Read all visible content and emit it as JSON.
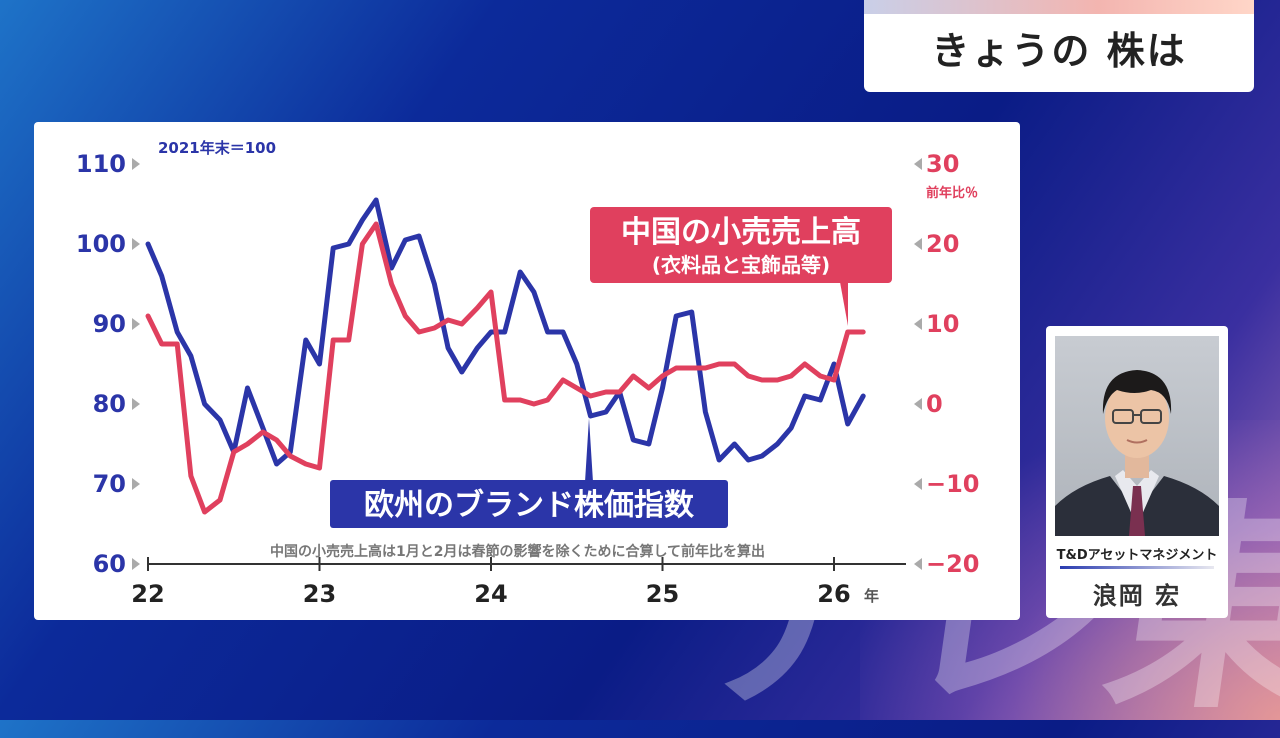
{
  "header": {
    "title": "きょうの 株は"
  },
  "speaker": {
    "company": "T&Dアセットマネジメント",
    "name": "浪岡 宏"
  },
  "watermark": "テレ東",
  "chart_data": {
    "type": "line",
    "base_note": "2021年末＝100",
    "footnote": "中国の小売売上高は1月と2月は春節の影響を除くために合算して前年比を算出",
    "x_axis": {
      "ticks": [
        "22",
        "23",
        "24",
        "25",
        "26"
      ],
      "unit": "年",
      "range": [
        2022,
        2026.9
      ]
    },
    "y_left": {
      "ticks": [
        "110",
        "100",
        "90",
        "80",
        "70",
        "60"
      ],
      "range": [
        60,
        110
      ]
    },
    "y_right": {
      "ticks": [
        "30",
        "20",
        "10",
        "0",
        "−10",
        "−20"
      ],
      "range": [
        -20,
        30
      ],
      "unit": "前年比％"
    },
    "series": [
      {
        "name": "欧州のブランド株価指数",
        "axis": "left",
        "color": "#2b35a8",
        "points": [
          [
            2022.0,
            100
          ],
          [
            2022.08,
            96
          ],
          [
            2022.17,
            89
          ],
          [
            2022.25,
            86
          ],
          [
            2022.33,
            80
          ],
          [
            2022.42,
            78
          ],
          [
            2022.5,
            74
          ],
          [
            2022.58,
            82
          ],
          [
            2022.67,
            77
          ],
          [
            2022.75,
            72.5
          ],
          [
            2022.83,
            74
          ],
          [
            2022.92,
            88
          ],
          [
            2023.0,
            85
          ],
          [
            2023.08,
            99.5
          ],
          [
            2023.17,
            100
          ],
          [
            2023.25,
            103
          ],
          [
            2023.33,
            105.5
          ],
          [
            2023.42,
            97
          ],
          [
            2023.5,
            100.5
          ],
          [
            2023.58,
            101
          ],
          [
            2023.67,
            95
          ],
          [
            2023.75,
            87
          ],
          [
            2023.83,
            84
          ],
          [
            2023.92,
            87
          ],
          [
            2024.0,
            89
          ],
          [
            2024.08,
            89
          ],
          [
            2024.17,
            96.5
          ],
          [
            2024.25,
            94
          ],
          [
            2024.33,
            89
          ],
          [
            2024.42,
            89
          ],
          [
            2024.5,
            85
          ],
          [
            2024.58,
            78.5
          ],
          [
            2024.67,
            79
          ],
          [
            2024.75,
            81.5
          ],
          [
            2024.83,
            75.5
          ],
          [
            2024.92,
            75
          ],
          [
            2025.0,
            82
          ],
          [
            2025.08,
            91
          ],
          [
            2025.17,
            91.5
          ],
          [
            2025.25,
            79
          ],
          [
            2025.33,
            73
          ],
          [
            2025.42,
            75
          ],
          [
            2025.5,
            73
          ],
          [
            2025.58,
            73.5
          ],
          [
            2025.67,
            75
          ],
          [
            2025.75,
            77
          ],
          [
            2025.83,
            81
          ],
          [
            2025.92,
            80.5
          ],
          [
            2026.0,
            85
          ],
          [
            2026.08,
            77.5
          ],
          [
            2026.17,
            81
          ]
        ]
      },
      {
        "name": "中国の小売売上高",
        "sub_label": "(衣料品と宝飾品等)",
        "axis": "right",
        "color": "#e0405e",
        "points": [
          [
            2022.0,
            11
          ],
          [
            2022.08,
            7.5
          ],
          [
            2022.17,
            7.5
          ],
          [
            2022.25,
            -9
          ],
          [
            2022.33,
            -13.5
          ],
          [
            2022.42,
            -12
          ],
          [
            2022.5,
            -6
          ],
          [
            2022.58,
            -5
          ],
          [
            2022.67,
            -3.5
          ],
          [
            2022.75,
            -4.5
          ],
          [
            2022.83,
            -6.5
          ],
          [
            2022.92,
            -7.5
          ],
          [
            2023.0,
            -8
          ],
          [
            2023.08,
            8
          ],
          [
            2023.17,
            8
          ],
          [
            2023.25,
            20
          ],
          [
            2023.33,
            22.5
          ],
          [
            2023.42,
            15
          ],
          [
            2023.5,
            11
          ],
          [
            2023.58,
            9
          ],
          [
            2023.67,
            9.5
          ],
          [
            2023.75,
            10.5
          ],
          [
            2023.83,
            10
          ],
          [
            2023.92,
            12
          ],
          [
            2024.0,
            14
          ],
          [
            2024.08,
            0.5
          ],
          [
            2024.17,
            0.5
          ],
          [
            2024.25,
            0
          ],
          [
            2024.33,
            0.5
          ],
          [
            2024.42,
            3
          ],
          [
            2024.5,
            2
          ],
          [
            2024.58,
            1
          ],
          [
            2024.67,
            1.5
          ],
          [
            2024.75,
            1.5
          ],
          [
            2024.83,
            3.5
          ],
          [
            2024.92,
            2
          ],
          [
            2025.0,
            3.5
          ],
          [
            2025.08,
            4.5
          ],
          [
            2025.17,
            4.5
          ],
          [
            2025.25,
            4.5
          ],
          [
            2025.33,
            5
          ],
          [
            2025.42,
            5
          ],
          [
            2025.5,
            3.5
          ],
          [
            2025.58,
            3
          ],
          [
            2025.67,
            3
          ],
          [
            2025.75,
            3.5
          ],
          [
            2025.83,
            5
          ],
          [
            2025.92,
            3.5
          ],
          [
            2026.0,
            3
          ],
          [
            2026.08,
            9
          ],
          [
            2026.17,
            9
          ]
        ]
      }
    ],
    "grid": false
  }
}
